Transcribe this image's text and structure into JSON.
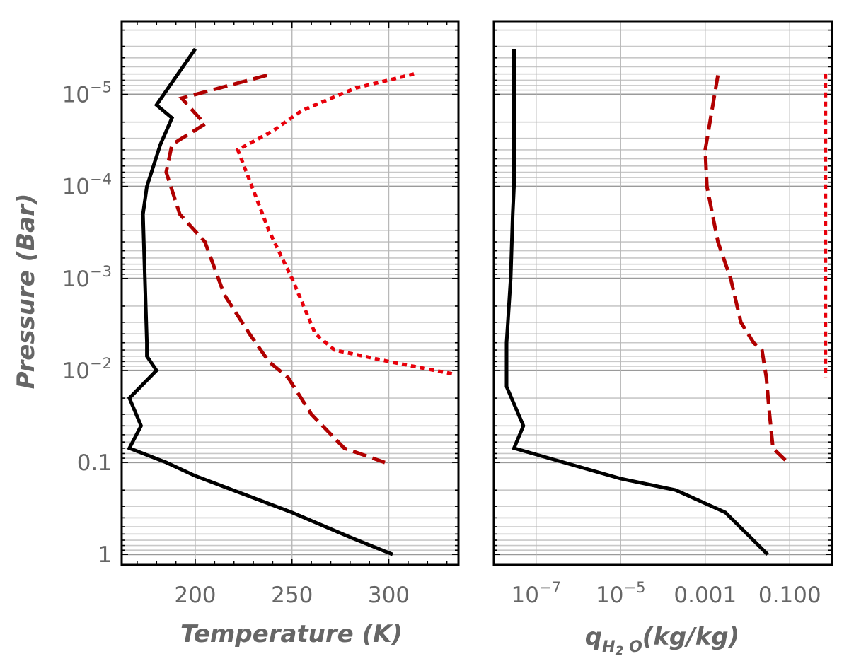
{
  "chart_data": [
    {
      "type": "line",
      "panel": "temperature",
      "xlabel": "Temperature (K)",
      "ylabel": "Pressure (Bar)",
      "xscale": "linear",
      "yscale": "log",
      "xlim": [
        162,
        336
      ],
      "ylim": [
        1.3,
        1.6e-06
      ],
      "xticks": [
        200,
        250,
        300
      ],
      "xtick_labels": [
        "200",
        "250",
        "300"
      ],
      "yticks": [
        1e-05,
        0.0001,
        0.001,
        0.01,
        0.1,
        1
      ],
      "ytick_labels": [
        {
          "base": "10",
          "exp": "−5"
        },
        {
          "base": "10",
          "exp": "−4"
        },
        {
          "base": "10",
          "exp": "−3"
        },
        {
          "base": "10",
          "exp": "−2"
        },
        {
          "base": "0.1",
          "exp": ""
        },
        {
          "base": "1",
          "exp": ""
        }
      ],
      "series": [
        {
          "name": "solid",
          "color": "#000000",
          "dash": "solid",
          "x": [
            200,
            180,
            188,
            182,
            175,
            173,
            174,
            175,
            175,
            180,
            166,
            172,
            166,
            185,
            200,
            250,
            280,
            302
          ],
          "y": [
            3.2e-06,
            1.3e-05,
            1.8e-05,
            3.5e-05,
            0.0001,
            0.0002,
            0.001,
            0.005,
            0.007,
            0.01,
            0.02,
            0.04,
            0.07,
            0.1,
            0.14,
            0.35,
            0.65,
            1.0
          ]
        },
        {
          "name": "dashed",
          "color": "#b00000",
          "dash": "dashed",
          "x": [
            237,
            193,
            205,
            188,
            185,
            192,
            205,
            215,
            228,
            238,
            248,
            260,
            277,
            298
          ],
          "y": [
            6.2e-06,
            1.1e-05,
            2.1e-05,
            3.5e-05,
            7e-05,
            0.0002,
            0.0004,
            0.0015,
            0.004,
            0.008,
            0.012,
            0.03,
            0.07,
            0.1
          ]
        },
        {
          "name": "dotted",
          "color": "#e8000b",
          "dash": "dotted",
          "x": [
            313,
            283,
            255,
            240,
            222,
            238,
            250,
            262,
            272,
            300,
            334
          ],
          "y": [
            6e-06,
            8.5e-06,
            1.5e-05,
            2.5e-05,
            4e-05,
            0.0003,
            0.001,
            0.004,
            0.006,
            0.008,
            0.011
          ]
        }
      ]
    },
    {
      "type": "line",
      "panel": "water",
      "xlabel": "q_{H2 O}(kg/kg)",
      "ylabel": "",
      "xscale": "log",
      "yscale": "log",
      "xlim": [
        1e-08,
        1
      ],
      "ylim": [
        1.3,
        1.6e-06
      ],
      "xticks": [
        1e-07,
        1e-05,
        0.001,
        0.1
      ],
      "xtick_labels": [
        {
          "base": "10",
          "exp": "−7"
        },
        {
          "base": "10",
          "exp": "−5"
        },
        {
          "base": "0.001",
          "exp": ""
        },
        {
          "base": "0.100",
          "exp": ""
        }
      ],
      "series": [
        {
          "name": "solid",
          "color": "#000000",
          "dash": "solid",
          "x": [
            3e-08,
            3e-08,
            2.8e-08,
            2.5e-08,
            2e-08,
            2e-08,
            2e-08,
            5e-08,
            3e-08,
            1e-05,
            0.0002,
            0.003,
            0.03
          ],
          "y": [
            3.2e-06,
            0.0001,
            0.0002,
            0.001,
            0.005,
            0.01,
            0.015,
            0.04,
            0.07,
            0.15,
            0.2,
            0.35,
            1.0
          ]
        },
        {
          "name": "dashed",
          "color": "#b00000",
          "dash": "dashed",
          "x": [
            0.002,
            0.001,
            0.0011,
            0.002,
            0.004,
            0.007,
            0.014,
            0.022,
            0.028,
            0.032,
            0.04,
            0.09
          ],
          "y": [
            6.2e-06,
            4e-05,
            0.0001,
            0.0004,
            0.001,
            0.003,
            0.005,
            0.006,
            0.012,
            0.025,
            0.07,
            0.1
          ]
        },
        {
          "name": "dotted",
          "color": "#e8000b",
          "dash": "dotted",
          "x": [
            0.7,
            0.7
          ],
          "y": [
            6e-06,
            0.012
          ]
        }
      ]
    }
  ],
  "labels": {
    "left_xlabel": "Temperature (K)",
    "left_ylabel": "Pressure (Bar)",
    "right_xlabel_q": "q",
    "right_xlabel_sub": "H",
    "right_xlabel_sub2": "2",
    "right_xlabel_sub3": " O",
    "right_xlabel_units": "(kg/kg)"
  }
}
